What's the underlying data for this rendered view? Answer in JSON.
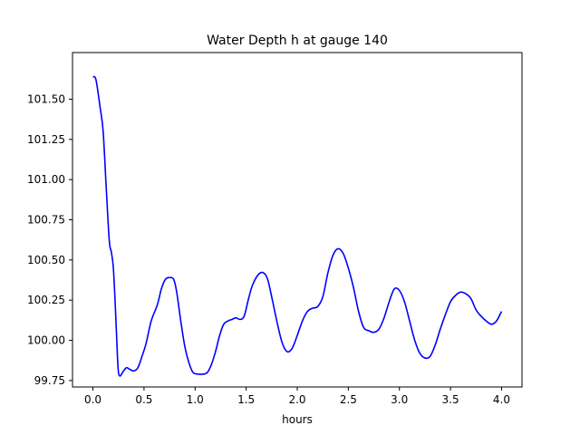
{
  "chart_data": {
    "type": "line",
    "title": "Water Depth h at gauge 140",
    "xlabel": "hours",
    "ylabel": "",
    "xlim": [
      -0.2,
      4.2
    ],
    "ylim": [
      99.71,
      101.79
    ],
    "xticks": [
      0.0,
      0.5,
      1.0,
      1.5,
      2.0,
      2.5,
      3.0,
      3.5,
      4.0
    ],
    "xtick_labels": [
      "0.0",
      "0.5",
      "1.0",
      "1.5",
      "2.0",
      "2.5",
      "3.0",
      "3.5",
      "4.0"
    ],
    "yticks": [
      99.75,
      100.0,
      100.25,
      100.5,
      100.75,
      101.0,
      101.25,
      101.5
    ],
    "ytick_labels": [
      "99.75",
      "100.00",
      "100.25",
      "100.50",
      "100.75",
      "101.00",
      "101.25",
      "101.50"
    ],
    "grid": false,
    "series": [
      {
        "color": "#0000ff",
        "x": [
          0.0,
          0.03,
          0.07,
          0.1,
          0.13,
          0.16,
          0.18,
          0.2,
          0.22,
          0.24,
          0.25,
          0.26,
          0.27,
          0.28,
          0.3,
          0.33,
          0.36,
          0.4,
          0.44,
          0.48,
          0.52,
          0.57,
          0.63,
          0.67,
          0.71,
          0.75,
          0.79,
          0.82,
          0.86,
          0.9,
          0.94,
          0.98,
          1.03,
          1.08,
          1.12,
          1.16,
          1.2,
          1.24,
          1.28,
          1.32,
          1.36,
          1.4,
          1.44,
          1.48,
          1.52,
          1.56,
          1.62,
          1.67,
          1.71,
          1.75,
          1.8,
          1.85,
          1.9,
          1.95,
          2.0,
          2.05,
          2.1,
          2.15,
          2.2,
          2.25,
          2.3,
          2.35,
          2.4,
          2.45,
          2.5,
          2.55,
          2.6,
          2.65,
          2.7,
          2.75,
          2.8,
          2.85,
          2.9,
          2.95,
          3.0,
          3.05,
          3.1,
          3.15,
          3.2,
          3.25,
          3.3,
          3.35,
          3.4,
          3.45,
          3.5,
          3.55,
          3.6,
          3.65,
          3.7,
          3.75,
          3.8,
          3.85,
          3.9,
          3.95,
          4.0
        ],
        "y": [
          101.64,
          101.62,
          101.45,
          101.3,
          100.95,
          100.62,
          100.55,
          100.45,
          100.2,
          99.9,
          99.8,
          99.78,
          99.78,
          99.79,
          99.81,
          99.83,
          99.82,
          99.81,
          99.83,
          99.9,
          99.98,
          100.12,
          100.22,
          100.32,
          100.38,
          100.39,
          100.38,
          100.3,
          100.12,
          99.96,
          99.86,
          99.8,
          99.79,
          99.79,
          99.8,
          99.85,
          99.93,
          100.03,
          100.1,
          100.12,
          100.13,
          100.14,
          100.13,
          100.15,
          100.25,
          100.34,
          100.41,
          100.42,
          100.38,
          100.27,
          100.12,
          99.99,
          99.93,
          99.95,
          100.03,
          100.12,
          100.18,
          100.2,
          100.21,
          100.27,
          100.42,
          100.53,
          100.57,
          100.54,
          100.45,
          100.33,
          100.18,
          100.08,
          100.06,
          100.05,
          100.07,
          100.14,
          100.24,
          100.32,
          100.31,
          100.24,
          100.12,
          100.0,
          99.92,
          99.89,
          99.9,
          99.97,
          100.07,
          100.16,
          100.24,
          100.28,
          100.3,
          100.29,
          100.26,
          100.19,
          100.15,
          100.12,
          100.1,
          100.12,
          100.18
        ]
      }
    ]
  }
}
